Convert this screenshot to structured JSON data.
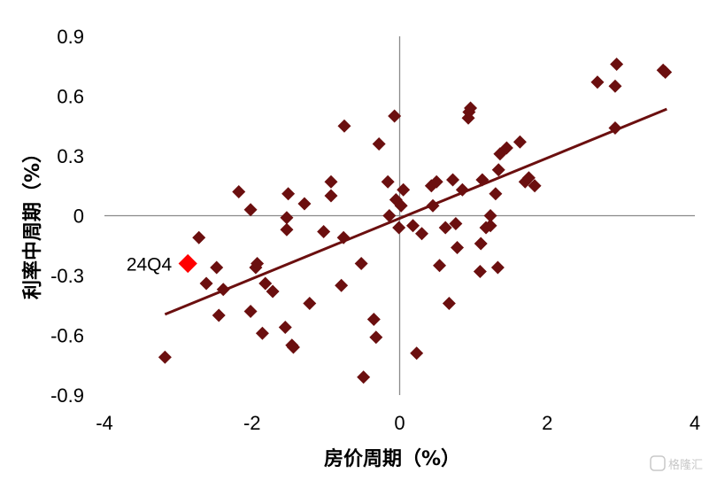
{
  "chart_data": {
    "type": "scatter",
    "xlabel": "房价周期（%）",
    "ylabel": "利率中周期（%）",
    "xlim": [
      -4,
      4
    ],
    "ylim": [
      -0.9,
      0.9
    ],
    "xticks": [
      "-4",
      "-2",
      "0",
      "2",
      "4"
    ],
    "yticks": [
      "0.9",
      "0.6",
      "0.3",
      "0",
      "-0.3",
      "-0.6",
      "-0.9"
    ],
    "grid": false,
    "marker_color": "#6B0F0F",
    "highlight_color": "#FF0000",
    "trendline_color": "#6B0F0F",
    "series": [
      {
        "values": [
          [
            -3.18,
            -0.71
          ],
          [
            -2.72,
            -0.11
          ],
          [
            -2.48,
            -0.26
          ],
          [
            -2.45,
            -0.5
          ],
          [
            -2.39,
            -0.37
          ],
          [
            -2.62,
            -0.34
          ],
          [
            -2.18,
            0.12
          ],
          [
            -2.02,
            0.03
          ],
          [
            -2.02,
            -0.48
          ],
          [
            -1.95,
            -0.26
          ],
          [
            -1.93,
            -0.24
          ],
          [
            -1.86,
            -0.59
          ],
          [
            -1.82,
            -0.34
          ],
          [
            -1.72,
            -0.38
          ],
          [
            -1.55,
            -0.56
          ],
          [
            -1.53,
            -0.01
          ],
          [
            -1.53,
            -0.07
          ],
          [
            -1.51,
            0.11
          ],
          [
            -1.46,
            -0.65
          ],
          [
            -1.44,
            -0.66
          ],
          [
            -1.29,
            0.06
          ],
          [
            -1.22,
            -0.44
          ],
          [
            -1.03,
            -0.08
          ],
          [
            -0.93,
            0.17
          ],
          [
            -0.93,
            0.1
          ],
          [
            -0.79,
            -0.35
          ],
          [
            -0.76,
            -0.11
          ],
          [
            -0.75,
            0.45
          ],
          [
            -0.52,
            -0.24
          ],
          [
            -0.49,
            -0.81
          ],
          [
            -0.35,
            -0.52
          ],
          [
            -0.32,
            -0.61
          ],
          [
            -0.28,
            0.36
          ],
          [
            -0.16,
            0.17
          ],
          [
            -0.14,
            0.0
          ],
          [
            -0.07,
            0.5
          ],
          [
            -0.05,
            0.08
          ],
          [
            -0.01,
            -0.06
          ],
          [
            0.02,
            0.05
          ],
          [
            0.05,
            0.13
          ],
          [
            0.18,
            -0.05
          ],
          [
            0.23,
            -0.69
          ],
          [
            0.3,
            -0.09
          ],
          [
            0.43,
            0.15
          ],
          [
            0.45,
            0.05
          ],
          [
            0.5,
            0.17
          ],
          [
            0.54,
            -0.25
          ],
          [
            0.62,
            -0.06
          ],
          [
            0.67,
            -0.44
          ],
          [
            0.72,
            0.18
          ],
          [
            0.76,
            -0.04
          ],
          [
            0.78,
            -0.16
          ],
          [
            0.85,
            0.13
          ],
          [
            0.93,
            0.49
          ],
          [
            0.94,
            0.52
          ],
          [
            0.96,
            0.54
          ],
          [
            1.09,
            -0.28
          ],
          [
            1.1,
            -0.14
          ],
          [
            1.12,
            0.18
          ],
          [
            1.17,
            -0.06
          ],
          [
            1.23,
            -0.05
          ],
          [
            1.23,
            0.0
          ],
          [
            1.3,
            0.11
          ],
          [
            1.33,
            -0.26
          ],
          [
            1.34,
            0.23
          ],
          [
            1.36,
            0.31
          ],
          [
            1.45,
            0.34
          ],
          [
            1.63,
            0.37
          ],
          [
            1.7,
            0.17
          ],
          [
            1.75,
            0.19
          ],
          [
            1.83,
            0.15
          ],
          [
            2.68,
            0.67
          ],
          [
            2.92,
            0.65
          ],
          [
            2.92,
            0.44
          ],
          [
            2.94,
            0.76
          ],
          [
            3.57,
            0.73
          ],
          [
            3.6,
            0.72
          ]
        ]
      }
    ],
    "highlight": {
      "label": "24Q4",
      "x": -2.87,
      "y": -0.24
    },
    "trendline": {
      "x": [
        -3.18,
        3.62
      ],
      "y": [
        -0.495,
        0.535
      ]
    }
  },
  "watermark": "格隆汇"
}
